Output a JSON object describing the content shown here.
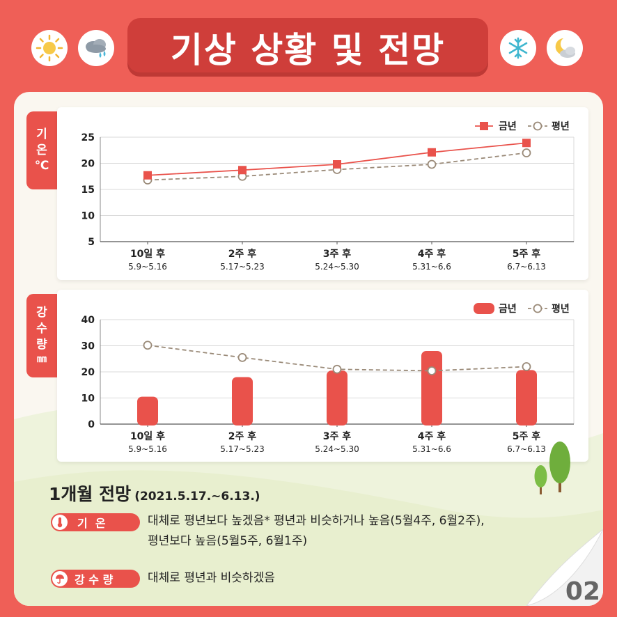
{
  "header": {
    "title": "기상 상황 및 전망",
    "icons": [
      "sun-icon",
      "rain-cloud-icon",
      "snowflake-icon",
      "moon-cloud-icon"
    ]
  },
  "colors": {
    "background": "#ef5f57",
    "accent": "#e9524b",
    "title_box": "#cf3e3a",
    "current_year": "#e9524b",
    "normal_year": "#9a8a78"
  },
  "temperature_tab": {
    "line1": "기",
    "line2": "온",
    "unit": "℃"
  },
  "rain_tab": {
    "line1": "강",
    "line2": "수",
    "line3": "량",
    "unit": "㎜"
  },
  "chart_data": [
    {
      "type": "line",
      "categories": [
        "10일 후",
        "2주 후",
        "3주 후",
        "4주 후",
        "5주 후"
      ],
      "category_dates": [
        "5.9~5.16",
        "5.17~5.23",
        "5.24~5.30",
        "5.31~6.6",
        "6.7~6.13"
      ],
      "series": [
        {
          "name": "금년",
          "values": [
            17.7,
            18.7,
            19.8,
            22.1,
            23.9
          ]
        },
        {
          "name": "평년",
          "values": [
            16.8,
            17.5,
            18.8,
            19.8,
            22.0
          ]
        }
      ],
      "yticks": [
        5,
        10,
        15,
        20,
        25
      ],
      "ylim": [
        5,
        25
      ],
      "grid": true,
      "legend": "top-right"
    },
    {
      "type": "bar",
      "categories": [
        "10일 후",
        "2주 후",
        "3주 후",
        "4주 후",
        "5주 후"
      ],
      "category_dates": [
        "5.9~5.16",
        "5.17~5.23",
        "5.24~5.30",
        "5.31~6.6",
        "6.7~6.13"
      ],
      "series": [
        {
          "name": "금년",
          "values": [
            10.5,
            18.0,
            20.5,
            28.0,
            20.7
          ],
          "mark": "bar"
        },
        {
          "name": "평년",
          "values": [
            30.2,
            25.5,
            21.0,
            20.4,
            22.0
          ],
          "mark": "line"
        }
      ],
      "yticks": [
        0,
        10,
        20,
        30,
        40
      ],
      "ylim": [
        0,
        40
      ],
      "grid": true,
      "legend": "top-right"
    }
  ],
  "outlook": {
    "title": "1개월 전망",
    "period": "(2021.5.17.~6.13.)",
    "temp_label": "기  온",
    "temp_text_1": "대체로 평년보다 높겠음* 평년과 비슷하거나 높음(5월4주, 6월2주),",
    "temp_text_2": "평년보다 높음(5월5주, 6월1주)",
    "rain_label": "강 수 량",
    "rain_text": "대체로 평년과 비슷하겠음"
  },
  "page_number": "02"
}
